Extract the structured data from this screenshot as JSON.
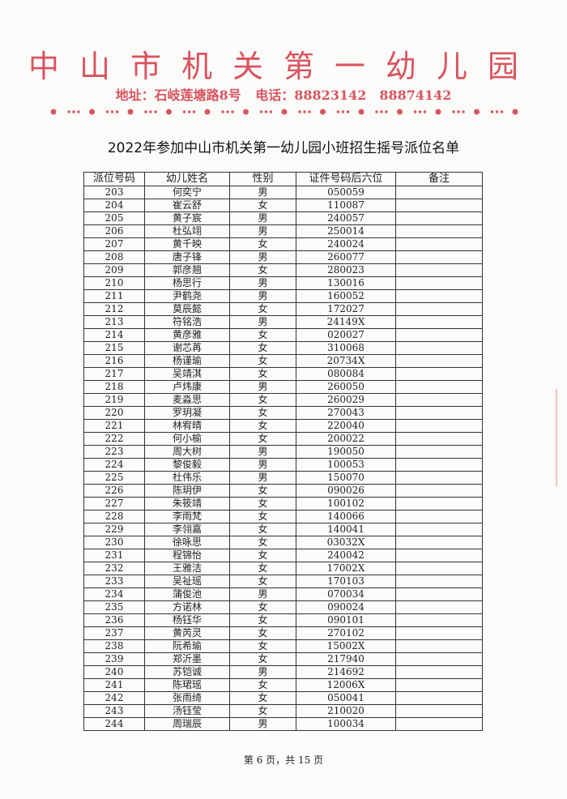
{
  "letterhead": {
    "org_name": "中山市机关第一幼儿园",
    "address": "地址：石岐莲塘路8号",
    "phone": "电话：88823142　88874142",
    "accent_color": "#d9545e"
  },
  "title": "2022年参加中山市机关第一幼儿园小班招生摇号派位名单",
  "table": {
    "headers": [
      "派位号码",
      "幼儿姓名",
      "性别",
      "证件号码后六位",
      "备注"
    ],
    "rows": [
      [
        "203",
        "何奕宁",
        "男",
        "050059",
        ""
      ],
      [
        "204",
        "崔云舒",
        "女",
        "110087",
        ""
      ],
      [
        "205",
        "黄子宸",
        "男",
        "240057",
        ""
      ],
      [
        "206",
        "杜弘翊",
        "男",
        "250014",
        ""
      ],
      [
        "207",
        "黄千映",
        "女",
        "240024",
        ""
      ],
      [
        "208",
        "唐子锋",
        "男",
        "260077",
        ""
      ],
      [
        "209",
        "郭彦翘",
        "女",
        "280023",
        ""
      ],
      [
        "210",
        "杨思行",
        "男",
        "130016",
        ""
      ],
      [
        "211",
        "尹鹤尧",
        "男",
        "160052",
        ""
      ],
      [
        "212",
        "莫辰懿",
        "女",
        "172027",
        ""
      ],
      [
        "213",
        "符铭浩",
        "男",
        "24149X",
        ""
      ],
      [
        "214",
        "黄彦雅",
        "女",
        "020027",
        ""
      ],
      [
        "215",
        "谢芯苒",
        "女",
        "310068",
        ""
      ],
      [
        "216",
        "杨谨瑜",
        "女",
        "20734X",
        ""
      ],
      [
        "217",
        "吴靖淇",
        "女",
        "080084",
        ""
      ],
      [
        "218",
        "卢炜康",
        "男",
        "260050",
        ""
      ],
      [
        "219",
        "麦淼思",
        "女",
        "260029",
        ""
      ],
      [
        "220",
        "罗玥凝",
        "女",
        "270043",
        ""
      ],
      [
        "221",
        "林宥晴",
        "女",
        "220040",
        ""
      ],
      [
        "222",
        "何小榆",
        "女",
        "200022",
        ""
      ],
      [
        "223",
        "周大树",
        "男",
        "190050",
        ""
      ],
      [
        "224",
        "黎俊毅",
        "男",
        "100053",
        ""
      ],
      [
        "225",
        "杜伟乐",
        "男",
        "150070",
        ""
      ],
      [
        "226",
        "陈玥伊",
        "女",
        "090026",
        ""
      ],
      [
        "227",
        "朱筱靖",
        "女",
        "100102",
        ""
      ],
      [
        "228",
        "李雨梵",
        "女",
        "140066",
        ""
      ],
      [
        "229",
        "李翎嘉",
        "女",
        "140041",
        ""
      ],
      [
        "230",
        "徐咏思",
        "女",
        "03032X",
        ""
      ],
      [
        "231",
        "程锦怡",
        "女",
        "240042",
        ""
      ],
      [
        "232",
        "王雅洁",
        "女",
        "17002X",
        ""
      ],
      [
        "233",
        "吴祉瑶",
        "女",
        "170103",
        ""
      ],
      [
        "234",
        "蒲俊池",
        "男",
        "070034",
        ""
      ],
      [
        "235",
        "方诺林",
        "女",
        "090024",
        ""
      ],
      [
        "236",
        "杨钰华",
        "女",
        "090101",
        ""
      ],
      [
        "237",
        "黄芮灵",
        "女",
        "270102",
        ""
      ],
      [
        "238",
        "阮希瑜",
        "女",
        "15002X",
        ""
      ],
      [
        "239",
        "郑沂墨",
        "女",
        "217940",
        ""
      ],
      [
        "240",
        "苏铠诚",
        "男",
        "214692",
        ""
      ],
      [
        "241",
        "陈珺瑶",
        "女",
        "12006X",
        ""
      ],
      [
        "242",
        "张雨绮",
        "女",
        "050041",
        ""
      ],
      [
        "243",
        "汤钰莹",
        "女",
        "210020",
        ""
      ],
      [
        "244",
        "周瑞辰",
        "男",
        "100034",
        ""
      ]
    ]
  },
  "footer": "第 6 页，共 15 页"
}
